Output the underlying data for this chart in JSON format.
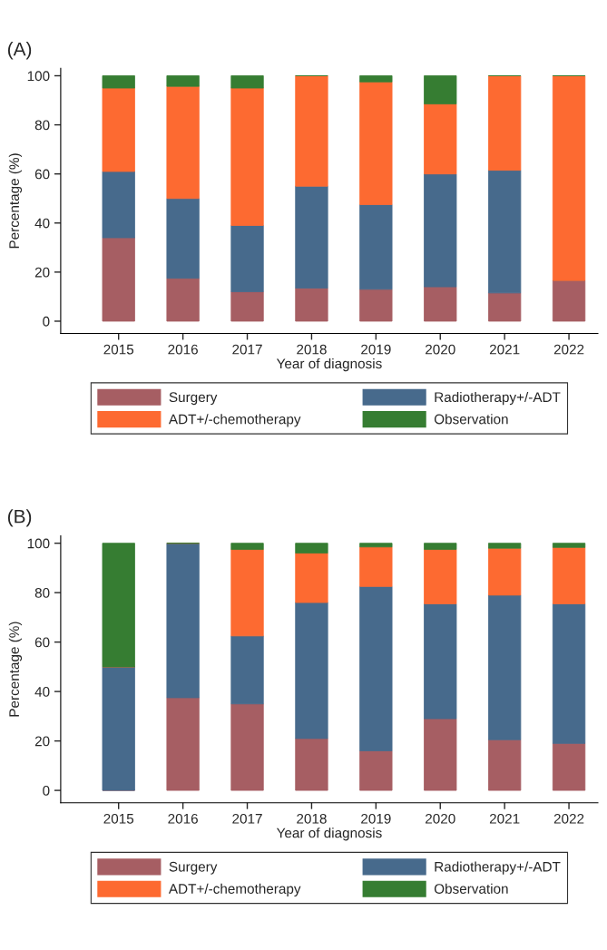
{
  "chart_data": [
    {
      "type": "bar",
      "title": "(A)",
      "xlabel": "Year of diagnosis",
      "ylabel": "Percentage (%)",
      "stacked": true,
      "legend": "bottom",
      "grid": false,
      "categories": [
        "2015",
        "2016",
        "2017",
        "2018",
        "2019",
        "2020",
        "2021",
        "2022"
      ],
      "ylim": [
        -5,
        103
      ],
      "yticks": [
        0,
        20,
        40,
        60,
        80,
        100
      ],
      "series": [
        {
          "name": "Surgery",
          "color": "#a65e63",
          "values": [
            34,
            17.5,
            12,
            13.5,
            13,
            14,
            11.5,
            16.5
          ]
        },
        {
          "name": "Radiotherapy+/-ADT",
          "color": "#476a8c",
          "values": [
            27,
            32.5,
            27,
            41.5,
            34.5,
            46,
            50,
            0
          ]
        },
        {
          "name": "ADT+/-chemotherapy",
          "color": "#fd6a31",
          "values": [
            34,
            45.7,
            56,
            45,
            50,
            28.5,
            38.5,
            83.5
          ]
        },
        {
          "name": "Observation",
          "color": "#367d32",
          "values": [
            5,
            4.3,
            5,
            0,
            2.5,
            11.5,
            0,
            0
          ]
        }
      ]
    },
    {
      "type": "bar",
      "title": "(B)",
      "xlabel": "Year of diagnosis",
      "ylabel": "Percentage (%)",
      "stacked": true,
      "legend": "bottom",
      "grid": false,
      "categories": [
        "2015",
        "2016",
        "2017",
        "2018",
        "2019",
        "2020",
        "2021",
        "2022"
      ],
      "ylim": [
        -5,
        103
      ],
      "yticks": [
        0,
        20,
        40,
        60,
        80,
        100
      ],
      "series": [
        {
          "name": "Surgery",
          "color": "#a65e63",
          "values": [
            0,
            37.5,
            35,
            21,
            16,
            29,
            20.5,
            19
          ]
        },
        {
          "name": "Radiotherapy+/-ADT",
          "color": "#476a8c",
          "values": [
            50,
            62.5,
            27.5,
            55,
            66.5,
            46.5,
            58.5,
            56.5
          ]
        },
        {
          "name": "ADT+/-chemotherapy",
          "color": "#fd6a31",
          "values": [
            0,
            0,
            35,
            20,
            16,
            22,
            19,
            22.8
          ]
        },
        {
          "name": "Observation",
          "color": "#367d32",
          "values": [
            50,
            0,
            2.5,
            4,
            1.5,
            2.5,
            2,
            1.7
          ]
        }
      ]
    }
  ]
}
